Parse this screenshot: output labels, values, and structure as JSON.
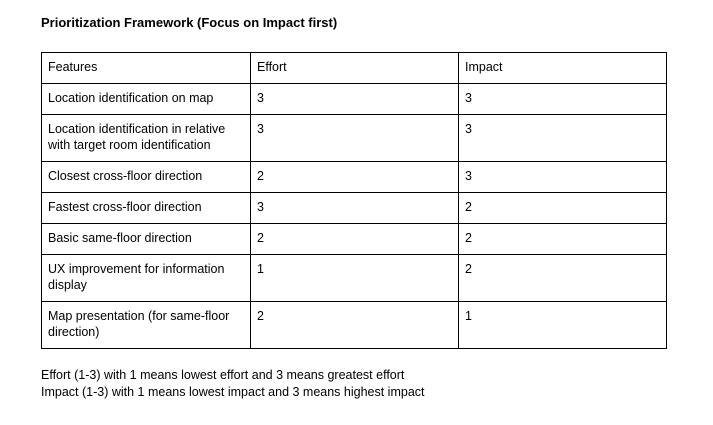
{
  "document": {
    "title": "Prioritization Framework (Focus on Impact first)"
  },
  "table": {
    "headers": {
      "feature": "Features",
      "effort": "Effort",
      "impact": "Impact"
    },
    "rows": [
      {
        "feature": "Location identification on map",
        "effort": "3",
        "impact": "3"
      },
      {
        "feature": "Location identification in relative with target room identification",
        "effort": "3",
        "impact": "3"
      },
      {
        "feature": "Closest cross-floor direction",
        "effort": "2",
        "impact": "3"
      },
      {
        "feature": "Fastest cross-floor direction",
        "effort": "3",
        "impact": "2"
      },
      {
        "feature": "Basic same-floor direction",
        "effort": "2",
        "impact": "2"
      },
      {
        "feature": "UX improvement for information display",
        "effort": "1",
        "impact": "2"
      },
      {
        "feature": "Map presentation (for same-floor direction)",
        "effort": "2",
        "impact": "1"
      }
    ]
  },
  "notes": [
    "Effort (1-3) with 1 means lowest effort and 3 means greatest effort",
    "Impact (1-3) with 1 means lowest impact and 3 means highest impact"
  ]
}
